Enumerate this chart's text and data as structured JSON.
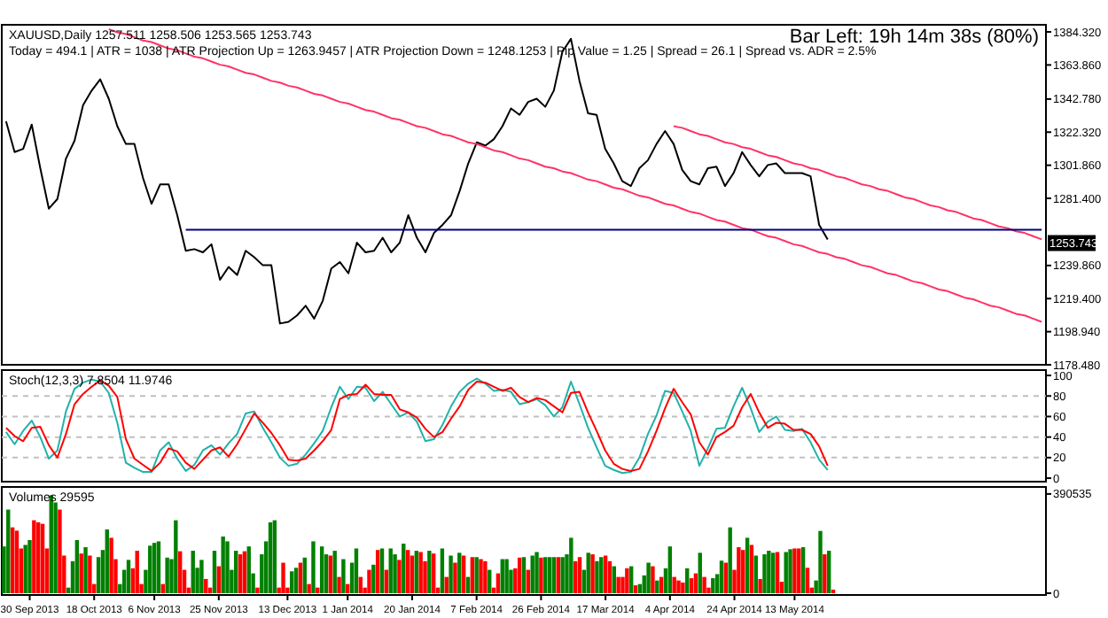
{
  "chart_data": [
    {
      "type": "line",
      "title": "XAUUSD,Daily  1257.511 1258.506 1253.565 1253.743",
      "subtitle": "Today = 494.1  |  ATR = 1038  |  ATR Projection Up = 1263.9457  |  ATR Projection Down = 1248.1253  |  Pip Value = 1.25  |  Spread = 26.1  |  Spread vs. ADR = 2.5%",
      "annotations": [
        "Bar Left: 19h 14m 38s (80%)",
        {
          "text": "1253.743",
          "y": 1253.743
        }
      ],
      "ylim": [
        1178.48,
        1388.7
      ],
      "yticks": [
        {
          "value": 1178.48,
          "label": "1178.480"
        },
        {
          "value": 1198.94,
          "label": "1198.940"
        },
        {
          "value": 1219.4,
          "label": "1219.400"
        },
        {
          "value": 1239.86,
          "label": "1239.860"
        },
        {
          "value": 1281.4,
          "label": "1281.400"
        },
        {
          "value": 1301.86,
          "label": "1301.860"
        },
        {
          "value": 1322.32,
          "label": "1322.320"
        },
        {
          "value": 1342.78,
          "label": "1342.780"
        },
        {
          "value": 1363.86,
          "label": "1363.860"
        },
        {
          "value": 1384.32,
          "label": "1384.320"
        }
      ],
      "categories": [
        null,
        null,
        null,
        null,
        null,
        null,
        null,
        null,
        null,
        null,
        null,
        null,
        null,
        null,
        null,
        null,
        null,
        null,
        null,
        null,
        null,
        null,
        null,
        null,
        null,
        null,
        null,
        null,
        null,
        null,
        null,
        null,
        null,
        null,
        null,
        null,
        null,
        null,
        null,
        null,
        null,
        null,
        null,
        null,
        null,
        null,
        null,
        null,
        null,
        null,
        null,
        null,
        null,
        null,
        null,
        null,
        null,
        null,
        null,
        null,
        null,
        null,
        null,
        null,
        null,
        null,
        null,
        null,
        null,
        null,
        null,
        null,
        null,
        null,
        null,
        null,
        null,
        null,
        null,
        null,
        null,
        null,
        null,
        null,
        null,
        null,
        null,
        null,
        null,
        null,
        null,
        null,
        null,
        null,
        null,
        null,
        null,
        null,
        null,
        null,
        null,
        null,
        null,
        null,
        null,
        null,
        null,
        null,
        null,
        null,
        null,
        null,
        null,
        null,
        null,
        null,
        null,
        null,
        null,
        null,
        null,
        null
      ],
      "series": [
        {
          "color": "#000000",
          "values": [
            1329,
            1310,
            1312,
            1327,
            1300,
            1275,
            1281,
            1306,
            1317,
            1339,
            1348,
            1355,
            1343,
            1326,
            1315,
            1315,
            1294,
            1278,
            1290,
            1290,
            1271,
            1249,
            1250,
            1248,
            1253,
            1231,
            1239,
            1234,
            1249,
            1245,
            1240,
            1240,
            1204,
            1205,
            1209,
            1215,
            1207,
            1218,
            1238,
            1242,
            1235,
            1254,
            1248,
            1249,
            1257,
            1248,
            1254,
            1271,
            1257,
            1248,
            1260,
            1265,
            1271,
            1286,
            1303,
            1316,
            1314,
            1318,
            1326,
            1337,
            1333,
            1341,
            1343,
            1338,
            1348,
            1372,
            1380,
            1354,
            1334,
            1333,
            1312,
            1303,
            1292,
            1289,
            1300,
            1305,
            1315,
            1323,
            1315,
            1299,
            1292,
            1290,
            1300,
            1301,
            1289,
            1297,
            1310,
            1302,
            1295,
            1302,
            1303,
            1297,
            1297,
            1297,
            1295,
            1265,
            1256,
            null,
            null,
            null,
            null,
            null,
            null,
            null,
            null,
            null,
            null,
            null,
            null,
            null,
            null,
            null,
            null,
            null,
            null,
            null,
            null,
            null,
            null,
            null,
            null,
            null
          ]
        },
        {
          "color": "#ff3366",
          "values": [
            null,
            null,
            null,
            null,
            null,
            null,
            null,
            null,
            null,
            null,
            null,
            null,
            1386,
            1384,
            1383,
            1381,
            1379,
            1378,
            1376,
            1374,
            1373,
            1371,
            1369,
            1368,
            1366,
            1364,
            1363,
            1361,
            1359,
            1358,
            1356,
            1354,
            1353,
            1351,
            1350,
            1348,
            1346,
            1345,
            1343,
            1341,
            1340,
            1338,
            1336,
            1335,
            1333,
            1331,
            1330,
            1328,
            1326,
            1325,
            1323,
            1321,
            1320,
            1318,
            1316,
            1315,
            1313,
            1311,
            1310,
            1308,
            1306,
            1305,
            1303,
            1301,
            1300,
            1298,
            1297,
            1295,
            1293,
            1292,
            1290,
            1288,
            1287,
            1285,
            1283,
            1282,
            1280,
            1278,
            1277,
            1275,
            1273,
            1272,
            1270,
            1268,
            1267,
            1265,
            1263,
            1262,
            1260,
            1258,
            1257,
            1255,
            1253,
            1252,
            1250,
            1248,
            1247,
            1245,
            1244,
            1242,
            1240,
            1239,
            1237,
            1235,
            1234,
            1232,
            1230,
            1229,
            1227,
            1225,
            1224,
            1222,
            1220,
            1219,
            1217,
            1215,
            1214,
            1212,
            1210,
            1209,
            1207,
            1205
          ]
        },
        {
          "color": "#ff3366",
          "values": [
            null,
            null,
            null,
            null,
            null,
            null,
            null,
            null,
            null,
            null,
            null,
            null,
            null,
            null,
            null,
            null,
            null,
            null,
            null,
            null,
            null,
            null,
            null,
            null,
            null,
            null,
            null,
            null,
            null,
            null,
            null,
            null,
            null,
            null,
            null,
            null,
            null,
            null,
            null,
            null,
            null,
            null,
            null,
            null,
            null,
            null,
            null,
            null,
            null,
            null,
            null,
            null,
            null,
            null,
            null,
            null,
            null,
            null,
            null,
            null,
            null,
            null,
            null,
            null,
            null,
            null,
            null,
            null,
            null,
            null,
            null,
            null,
            null,
            null,
            null,
            null,
            null,
            null,
            1326,
            1325,
            1323,
            1321,
            1320,
            1318,
            1316,
            1315,
            1313,
            1312,
            1310,
            1308,
            1307,
            1305,
            1303,
            1302,
            1300,
            1299,
            1297,
            1295,
            1294,
            1292,
            1290,
            1289,
            1287,
            1286,
            1284,
            1282,
            1281,
            1279,
            1277,
            1276,
            1274,
            1273,
            1271,
            1269,
            1268,
            1266,
            1264,
            1263,
            1261,
            1260,
            1258,
            1256
          ]
        },
        {
          "color": "#000080",
          "values": [
            null,
            null,
            null,
            null,
            null,
            null,
            null,
            null,
            null,
            null,
            null,
            null,
            null,
            null,
            null,
            null,
            null,
            null,
            null,
            null,
            null,
            1262,
            1262,
            1262,
            1262,
            1262,
            1262,
            1262,
            1262,
            1262,
            1262,
            1262,
            1262,
            1262,
            1262,
            1262,
            1262,
            1262,
            1262,
            1262,
            1262,
            1262,
            1262,
            1262,
            1262,
            1262,
            1262,
            1262,
            1262,
            1262,
            1262,
            1262,
            1262,
            1262,
            1262,
            1262,
            1262,
            1262,
            1262,
            1262,
            1262,
            1262,
            1262,
            1262,
            1262,
            1262,
            1262,
            1262,
            1262,
            1262,
            1262,
            1262,
            1262,
            1262,
            1262,
            1262,
            1262,
            1262,
            1262,
            1262,
            1262,
            1262,
            1262,
            1262,
            1262,
            1262,
            1262,
            1262,
            1262,
            1262,
            1262,
            1262,
            1262,
            1262,
            1262,
            1262,
            1262,
            1262,
            1262,
            1262,
            1262,
            1262,
            1262,
            1262,
            1262,
            1262,
            1262,
            1262,
            1262,
            1262,
            1262,
            1262,
            1262,
            1262,
            1262,
            1262,
            1262,
            1262,
            1262,
            1262,
            1262,
            1262
          ]
        }
      ]
    },
    {
      "type": "line",
      "title": "Stoch(12,3,3) 7.8504 11.9746",
      "ylim": [
        -3.4,
        105.2
      ],
      "yticks": [
        0,
        20,
        40,
        60,
        80,
        100
      ],
      "ref_lines": [
        {
          "axis": "y",
          "value": 20,
          "line_style": "dashed",
          "color": "#c0c0c0"
        },
        {
          "axis": "y",
          "value": 40,
          "line_style": "dashed",
          "color": "#c0c0c0"
        },
        {
          "axis": "y",
          "value": 60,
          "line_style": "dashed",
          "color": "#c0c0c0"
        },
        {
          "axis": "y",
          "value": 80,
          "line_style": "dashed",
          "color": "#c0c0c0"
        }
      ],
      "categories": [
        null,
        null,
        null,
        null,
        null,
        null,
        null,
        null,
        null,
        null,
        null,
        null,
        null,
        null,
        null,
        null,
        null,
        null,
        null,
        null,
        null,
        null,
        null,
        null,
        null,
        null,
        null,
        null,
        null,
        null,
        null,
        null,
        null,
        null,
        null,
        null,
        null,
        null,
        null,
        null,
        null,
        null,
        null,
        null,
        null,
        null,
        null,
        null,
        null,
        null,
        null,
        null,
        null,
        null,
        null,
        null,
        null,
        null,
        null,
        null,
        null,
        null,
        null,
        null,
        null,
        null,
        null,
        null,
        null,
        null,
        null,
        null,
        null,
        null,
        null,
        null,
        null,
        null,
        null,
        null,
        null,
        null,
        null,
        null,
        null,
        null,
        null,
        null,
        null,
        null,
        null,
        null,
        null,
        null,
        null,
        null,
        null,
        null,
        null,
        null,
        null,
        null,
        null,
        null,
        null,
        null,
        null,
        null,
        null,
        null,
        null,
        null,
        null,
        null,
        null,
        null,
        null,
        null,
        null,
        null,
        null,
        null
      ],
      "series": [
        {
          "color": "#20b2aa",
          "values": [
            45,
            33,
            46,
            56,
            40,
            19,
            27,
            65,
            87,
            93,
            96,
            94,
            83,
            54,
            15,
            10,
            6,
            6,
            27,
            35,
            19,
            7,
            13,
            27,
            32,
            23,
            34,
            43,
            63,
            65,
            49,
            35,
            20,
            12,
            14,
            23,
            34,
            46,
            69,
            89,
            77,
            89,
            88,
            75,
            84,
            72,
            60,
            64,
            55,
            36,
            38,
            52,
            70,
            84,
            92,
            97,
            92,
            85,
            86,
            84,
            72,
            74,
            77,
            71,
            60,
            69,
            94,
            72,
            49,
            30,
            12,
            8,
            5,
            6,
            20,
            43,
            61,
            85,
            83,
            65,
            46,
            12,
            29,
            48,
            49,
            70,
            88,
            68,
            45,
            55,
            60,
            47,
            46,
            48,
            35,
            18,
            8,
            null,
            null,
            null,
            null,
            null,
            null,
            null,
            null,
            null,
            null,
            null,
            null,
            null,
            null,
            null,
            null,
            null,
            null,
            null,
            null,
            null,
            null,
            null,
            null,
            null
          ]
        },
        {
          "color": "#ff0000",
          "values": [
            49,
            41,
            36,
            49,
            50,
            32,
            20,
            43,
            72,
            82,
            89,
            95,
            90,
            79,
            38,
            19,
            13,
            7,
            15,
            29,
            26,
            15,
            9,
            18,
            27,
            30,
            21,
            33,
            48,
            63,
            54,
            44,
            32,
            18,
            17,
            19,
            27,
            36,
            47,
            77,
            81,
            82,
            91,
            82,
            81,
            81,
            67,
            64,
            59,
            48,
            40,
            45,
            58,
            70,
            86,
            94,
            93,
            89,
            85,
            88,
            79,
            74,
            78,
            76,
            70,
            64,
            83,
            84,
            64,
            46,
            27,
            14,
            9,
            7,
            9,
            26,
            46,
            68,
            87,
            74,
            62,
            35,
            23,
            40,
            45,
            51,
            69,
            82,
            64,
            49,
            54,
            53,
            47,
            47,
            43,
            31,
            12,
            null,
            null,
            null,
            null,
            null,
            null,
            null,
            null,
            null,
            null,
            null,
            null,
            null,
            null,
            null,
            null,
            null,
            null,
            null,
            null,
            null,
            null,
            null,
            null,
            null
          ]
        }
      ]
    },
    {
      "type": "bar",
      "title": "Volumes 29595",
      "ylim": [
        -7000,
        418000
      ],
      "yticks": [
        0,
        390535
      ],
      "categories": [
        null,
        null,
        null,
        null,
        null,
        null,
        "30 Sep 2013",
        null,
        null,
        null,
        null,
        null,
        null,
        null,
        null,
        null,
        null,
        null,
        null,
        null,
        null,
        "18 Oct 2013",
        null,
        null,
        null,
        null,
        null,
        null,
        null,
        null,
        null,
        null,
        null,
        null,
        null,
        "6 Nov 2013",
        null,
        null,
        null,
        null,
        null,
        null,
        null,
        null,
        null,
        null,
        null,
        null,
        null,
        null,
        "25 Nov 2013",
        null,
        null,
        null,
        null,
        null,
        null,
        null,
        null,
        null,
        null,
        null,
        null,
        null,
        null,
        null,
        "13 Dec 2013",
        null,
        null,
        null,
        null,
        null,
        null,
        null,
        null,
        null,
        null,
        null,
        null,
        null,
        "1 Jan 2014",
        null,
        null,
        null,
        null,
        null,
        null,
        null,
        null,
        null,
        null,
        null,
        null,
        null,
        null,
        "20 Jan 2014",
        null,
        null,
        null,
        null,
        null,
        null,
        null,
        null,
        null,
        null,
        null,
        null,
        null,
        null,
        "7 Feb 2014",
        null,
        null,
        null,
        null,
        null,
        null,
        null,
        null,
        null,
        null,
        null,
        null,
        null,
        null,
        "26 Feb 2014",
        null,
        null,
        null,
        null,
        null,
        null,
        null,
        null,
        null,
        null,
        null,
        null,
        null,
        null,
        "17 Mar 2014",
        null,
        null,
        null,
        null,
        null,
        null,
        null,
        null,
        null,
        null,
        null,
        null,
        null,
        null,
        "4 Apr 2014",
        null,
        null,
        null,
        null,
        null,
        null,
        null,
        null,
        null,
        null,
        null,
        null,
        null,
        null,
        "24 Apr 2014",
        null,
        null,
        null,
        null,
        null,
        null,
        null,
        null,
        null,
        null,
        null,
        null,
        null,
        "13 May 2014",
        null,
        null,
        null,
        null,
        null,
        null,
        null,
        null,
        null,
        null,
        null,
        null,
        null,
        null,
        null,
        null,
        null,
        null,
        null,
        null,
        null,
        null,
        null,
        null,
        null,
        null,
        null,
        null,
        null,
        null,
        null,
        null,
        null,
        null,
        null,
        null,
        null,
        null,
        null,
        null,
        null,
        null,
        null,
        null,
        null,
        null,
        null,
        null,
        null,
        null,
        null,
        null,
        null,
        null,
        null,
        null,
        null,
        null
      ],
      "values": [
        184000,
        329000,
        259000,
        246000,
        176000,
        190000,
        209000,
        287000,
        279000,
        273000,
        176000,
        385000,
        357000,
        329000,
        148000,
        22000,
        126000,
        209000,
        156000,
        181000,
        148000,
        36000,
        142000,
        170000,
        251000,
        218000,
        134000,
        36000,
        92000,
        131000,
        98000,
        167000,
        36000,
        92000,
        187000,
        198000,
        204000,
        36000,
        140000,
        134000,
        287000,
        165000,
        92000,
        22000,
        167000,
        100000,
        131000,
        56000,
        22000,
        167000,
        106000,
        223000,
        204000,
        92000,
        167000,
        153000,
        165000,
        184000,
        78000,
        22000,
        153000,
        204000,
        279000,
        287000,
        22000,
        120000,
        22000,
        86000,
        100000,
        120000,
        140000,
        36000,
        204000,
        22000,
        184000,
        153000,
        148000,
        167000,
        64000,
        134000,
        36000,
        120000,
        176000,
        64000,
        22000,
        92000,
        112000,
        170000,
        176000,
        92000,
        176000,
        153000,
        131000,
        195000,
        170000,
        148000,
        167000,
        162000,
        126000,
        167000,
        156000,
        22000,
        176000,
        64000,
        148000,
        120000,
        159000,
        148000,
        64000,
        142000,
        142000,
        134000,
        126000,
        92000,
        22000,
        78000,
        134000,
        134000,
        92000,
        98000,
        140000,
        142000,
        92000,
        148000,
        162000,
        140000,
        142000,
        142000,
        142000,
        142000,
        142000,
        153000,
        218000,
        126000,
        142000,
        92000,
        159000,
        153000,
        126000,
        142000,
        148000,
        126000,
        106000,
        64000,
        64000,
        98000,
        106000,
        31000,
        36000,
        70000,
        120000,
        106000,
        50000,
        64000,
        98000,
        184000,
        64000,
        50000,
        42000,
        98000,
        59000,
        78000,
        159000,
        64000,
        22000,
        59000,
        75000,
        128000,
        120000,
        259000,
        92000,
        181000,
        170000,
        218000,
        190000,
        148000,
        56000,
        153000,
        167000,
        159000,
        162000,
        45000,
        162000,
        173000,
        176000,
        176000,
        181000,
        100000,
        22000,
        50000,
        245000,
        153000,
        167000,
        14000,
        null,
        null,
        null,
        null,
        null,
        null,
        null,
        null,
        null,
        null,
        null,
        null,
        null,
        null,
        null,
        null,
        null,
        null,
        null,
        null,
        null,
        null,
        null,
        null,
        null,
        null,
        null,
        null,
        null,
        null,
        null,
        null,
        null,
        null,
        null,
        null,
        null,
        null,
        null,
        null,
        null,
        null,
        null,
        null,
        null,
        null,
        null,
        null,
        null
      ],
      "colors": [
        "#008000",
        "#008000",
        "#ff0000",
        "#ff0000",
        "#ff0000",
        "#008000",
        "#008000",
        "#ff0000",
        "#ff0000",
        "#ff0000",
        "#ff0000",
        "#008000",
        "#008000",
        "#ff0000",
        "#ff0000",
        "#008000",
        "#008000",
        "#008000",
        "#ff0000",
        "#008000",
        "#ff0000",
        "#ff0000",
        "#008000",
        "#008000",
        "#008000",
        "#ff0000",
        "#ff0000",
        "#008000",
        "#008000",
        "#008000",
        "#ff0000",
        "#ff0000",
        "#ff0000",
        "#008000",
        "#008000",
        "#008000",
        "#008000",
        "#ff0000",
        "#008000",
        "#008000",
        "#008000",
        "#ff0000",
        "#ff0000",
        "#ff0000",
        "#008000",
        "#008000",
        "#008000",
        "#ff0000",
        "#ff0000",
        "#008000",
        "#ff0000",
        "#008000",
        "#008000",
        "#008000",
        "#008000",
        "#ff0000",
        "#ff0000",
        "#008000",
        "#008000",
        "#ff0000",
        "#008000",
        "#008000",
        "#008000",
        "#008000",
        "#ff0000",
        "#ff0000",
        "#ff0000",
        "#008000",
        "#008000",
        "#ff0000",
        "#008000",
        "#ff0000",
        "#008000",
        "#ff0000",
        "#008000",
        "#008000",
        "#ff0000",
        "#008000",
        "#ff0000",
        "#008000",
        "#ff0000",
        "#008000",
        "#008000",
        "#ff0000",
        "#ff0000",
        "#ff0000",
        "#008000",
        "#ff0000",
        "#008000",
        "#ff0000",
        "#008000",
        "#008000",
        "#ff0000",
        "#008000",
        "#ff0000",
        "#ff0000",
        "#008000",
        "#ff0000",
        "#ff0000",
        "#008000",
        "#ff0000",
        "#ff0000",
        "#008000",
        "#ff0000",
        "#008000",
        "#ff0000",
        "#008000",
        "#ff0000",
        "#008000",
        "#ff0000",
        "#008000",
        "#ff0000",
        "#ff0000",
        "#008000",
        "#ff0000",
        "#ff0000",
        "#008000",
        "#008000",
        "#008000",
        "#ff0000",
        "#ff0000",
        "#008000",
        "#ff0000",
        "#008000",
        "#008000",
        "#ff0000",
        "#008000",
        "#008000",
        "#008000",
        "#ff0000",
        "#008000",
        "#008000",
        "#008000",
        "#ff0000",
        "#ff0000",
        "#008000",
        "#008000",
        "#ff0000",
        "#008000",
        "#008000",
        "#ff0000",
        "#ff0000",
        "#008000",
        "#ff0000",
        "#ff0000",
        "#ff0000",
        "#008000",
        "#ff0000",
        "#008000",
        "#008000",
        "#008000",
        "#ff0000",
        "#008000",
        "#ff0000",
        "#008000",
        "#008000",
        "#ff0000",
        "#ff0000",
        "#ff0000",
        "#008000",
        "#ff0000",
        "#ff0000",
        "#008000",
        "#ff0000",
        "#ff0000",
        "#008000",
        "#008000",
        "#008000",
        "#ff0000",
        "#008000",
        "#ff0000",
        "#ff0000",
        "#ff0000",
        "#008000",
        "#ff0000",
        "#008000",
        "#ff0000",
        "#008000",
        "#008000",
        "#008000",
        "#ff0000",
        "#ff0000",
        "#008000",
        "#008000",
        "#ff0000",
        "#ff0000",
        "#008000",
        "#ff0000",
        "#ff0000",
        "#008000",
        "#008000",
        "#ff0000",
        "#008000",
        "#ff0000",
        null,
        null,
        null,
        null,
        null,
        null,
        null,
        null,
        null,
        null,
        null,
        null,
        null,
        null,
        null,
        null,
        null,
        null,
        null,
        null,
        null,
        null,
        null,
        null,
        null,
        null,
        null,
        null,
        null,
        null,
        null,
        null,
        null,
        null,
        null,
        null,
        null,
        null,
        null,
        null,
        null,
        null,
        null,
        null,
        null,
        null,
        null,
        null,
        null
      ]
    }
  ]
}
